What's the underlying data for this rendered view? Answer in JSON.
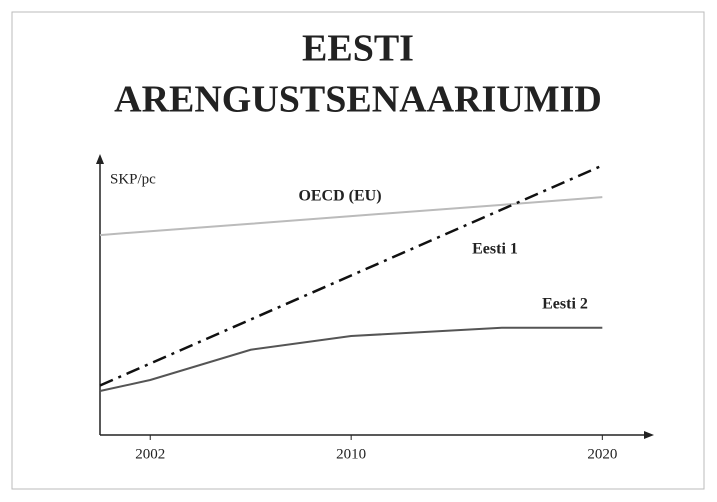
{
  "chart_data": {
    "type": "line",
    "title": [
      "EESTI",
      "ARENGUSTSENAARIUMID"
    ],
    "y_label": "SKP/pc",
    "x": [
      2000,
      2002,
      2006,
      2010,
      2016,
      2020
    ],
    "series": [
      {
        "name": "OECD (EU)",
        "color": "#bbbbbb",
        "dash": "solid",
        "values": [
          72.7,
          74.1,
          76.8,
          79.6,
          83.7,
          86.5
        ]
      },
      {
        "name": "Eesti 1",
        "color": "#111111",
        "dash": "dashdot",
        "values": [
          18,
          26,
          42,
          58,
          82,
          98
        ]
      },
      {
        "name": "Eesti 2",
        "color": "#555555",
        "dash": "solid",
        "values": [
          16,
          20,
          31,
          36,
          39,
          39
        ]
      }
    ],
    "xlim": [
      2000,
      2021.5
    ],
    "ylim": [
      0,
      100
    ],
    "xticks": [
      2002,
      2010,
      2020
    ]
  }
}
